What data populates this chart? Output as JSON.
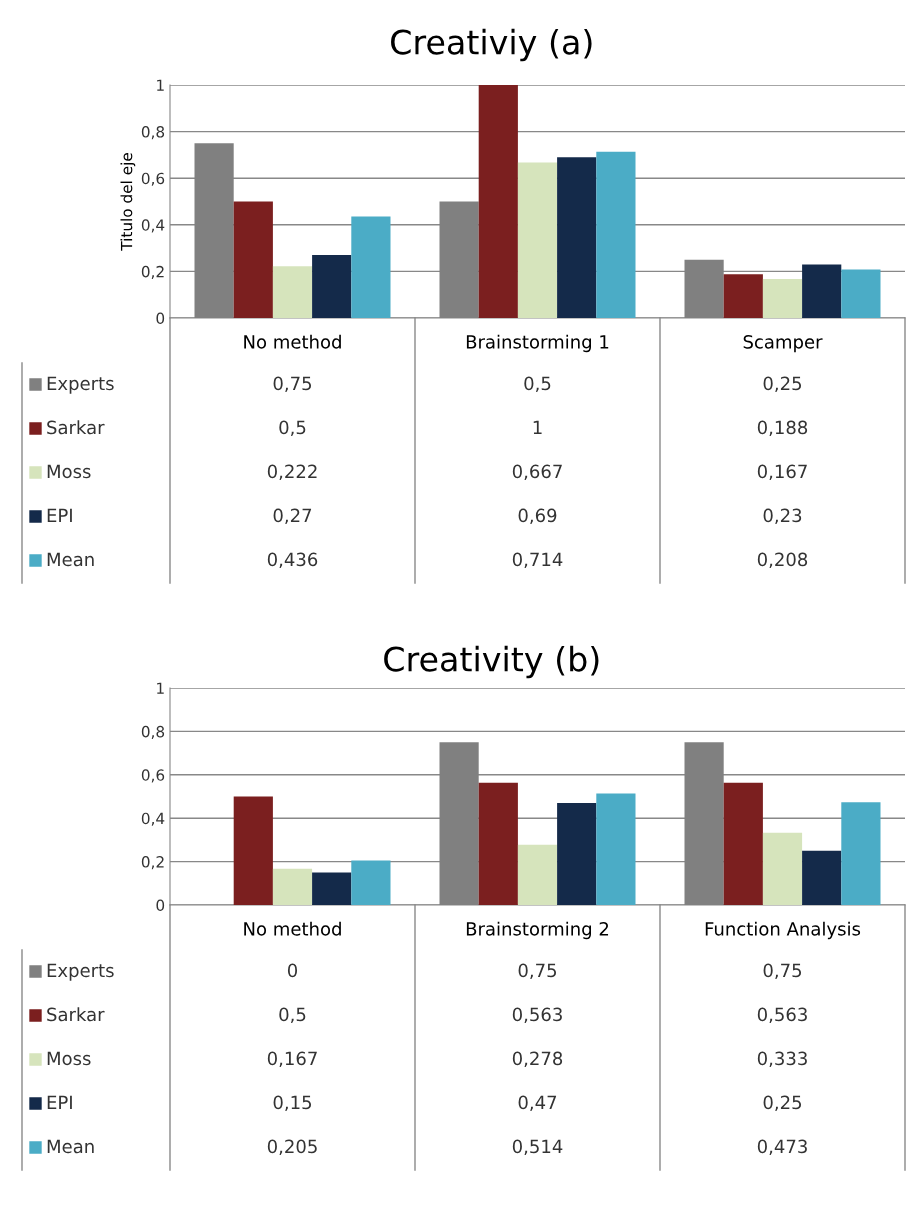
{
  "chart_data": [
    {
      "type": "bar",
      "title": "Creativiy (a)",
      "ylabel": "Titulo del eje",
      "categories": [
        "No method",
        "Brainstorming 1",
        "Scamper"
      ],
      "series": [
        {
          "name": "Experts",
          "color": "#808080",
          "values": [
            0.75,
            0.5,
            0.25
          ],
          "value_labels": [
            "0,75",
            "0,5",
            "0,25"
          ]
        },
        {
          "name": "Sarkar",
          "color": "#7b1f1f",
          "values": [
            0.5,
            1,
            0.188
          ],
          "value_labels": [
            "0,5",
            "1",
            "0,188"
          ]
        },
        {
          "name": "Moss",
          "color": "#d6e4bc",
          "values": [
            0.222,
            0.667,
            0.167
          ],
          "value_labels": [
            "0,222",
            "0,667",
            "0,167"
          ]
        },
        {
          "name": "EPI",
          "color": "#142a4a",
          "values": [
            0.27,
            0.69,
            0.23
          ],
          "value_labels": [
            "0,27",
            "0,69",
            "0,23"
          ]
        },
        {
          "name": "Mean",
          "color": "#4bacc6",
          "values": [
            0.436,
            0.714,
            0.208
          ],
          "value_labels": [
            "0,436",
            "0,714",
            "0,208"
          ]
        }
      ],
      "ylim": [
        0,
        1
      ],
      "yticks": [
        0,
        {
          "value": 0.2,
          "label": "0,2"
        },
        {
          "value": 0.4,
          "label": "0,4"
        },
        {
          "value": 0.6,
          "label": "0,6"
        },
        {
          "value": 0.8,
          "label": "0,8"
        },
        1
      ],
      "grid": "y",
      "legend": "bottom left"
    },
    {
      "type": "bar",
      "title": "Creativity (b)",
      "categories": [
        "No method",
        "Brainstorming 2",
        "Function Analysis"
      ],
      "series": [
        {
          "name": "Experts",
          "color": "#808080",
          "values": [
            0,
            0.75,
            0.75
          ],
          "value_labels": [
            "0",
            "0,75",
            "0,75"
          ]
        },
        {
          "name": "Sarkar",
          "color": "#7b1f1f",
          "values": [
            0.5,
            0.563,
            0.563
          ],
          "value_labels": [
            "0,5",
            "0,563",
            "0,563"
          ]
        },
        {
          "name": "Moss",
          "color": "#d6e4bc",
          "values": [
            0.167,
            0.278,
            0.333
          ],
          "value_labels": [
            "0,167",
            "0,278",
            "0,333"
          ]
        },
        {
          "name": "EPI",
          "color": "#142a4a",
          "values": [
            0.15,
            0.47,
            0.25
          ],
          "value_labels": [
            "0,15",
            "0,47",
            "0,25"
          ]
        },
        {
          "name": "Mean",
          "color": "#4bacc6",
          "values": [
            0.205,
            0.514,
            0.473
          ],
          "value_labels": [
            "0,205",
            "0,514",
            "0,473"
          ]
        }
      ],
      "ylim": [
        0,
        1
      ],
      "yticks": [
        0,
        {
          "value": 0.2,
          "label": "0,2"
        },
        {
          "value": 0.4,
          "label": "0,4"
        },
        {
          "value": 0.6,
          "label": "0,6"
        },
        {
          "value": 0.8,
          "label": "0,8"
        },
        1
      ],
      "grid": "y",
      "legend": "bottom left"
    }
  ]
}
